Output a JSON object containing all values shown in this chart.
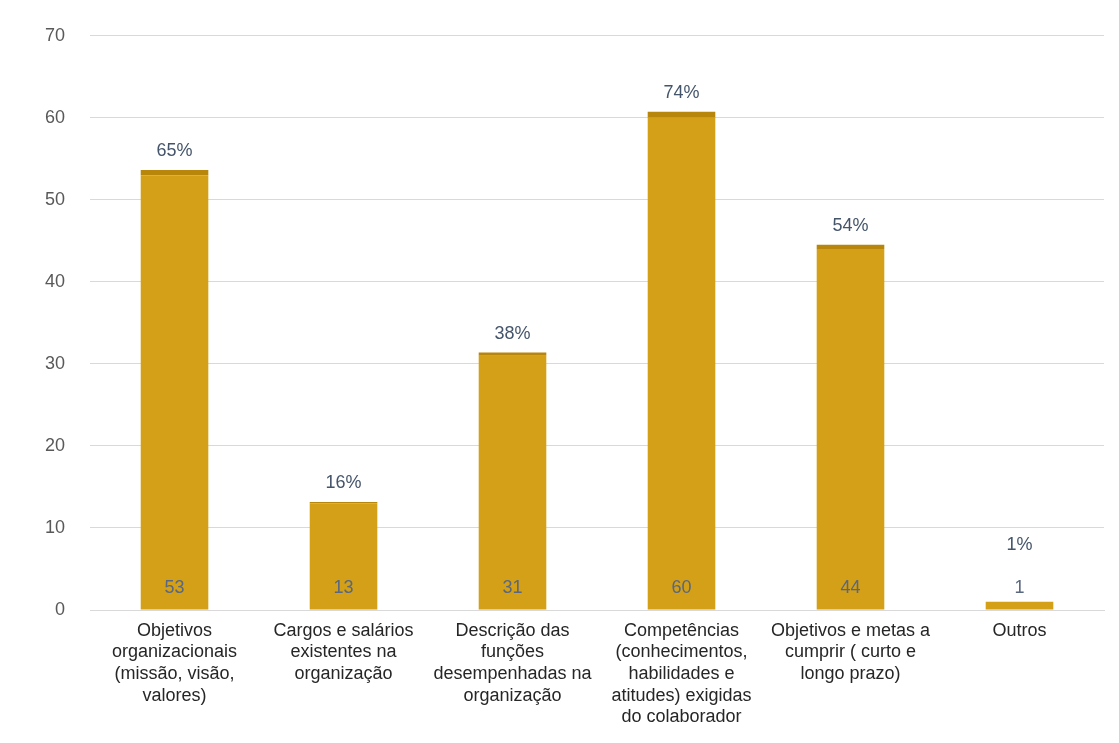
{
  "chart_data": {
    "type": "bar",
    "stacked": true,
    "categories": [
      "Objetivos organizacionais (missão, visão, valores)",
      "Cargos e salários existentes na organização",
      "Descrição das funções desempenhadas na organização",
      "Competências (conhecimentos, habilidades e atitudes) exigidas do colaborador",
      "Objetivos e metas a cumprir ( curto e longo prazo)",
      "Outros"
    ],
    "series": [
      {
        "color": "#d4a017",
        "values": [
          53,
          13,
          31,
          60,
          44,
          1
        ],
        "value_labels": [
          "53",
          "13",
          "31",
          "60",
          "44",
          "1"
        ]
      },
      {
        "color": "#b8860b",
        "values": [
          0.65,
          0.16,
          0.38,
          0.74,
          0.54,
          0.01
        ],
        "value_labels": [
          "65%",
          "16%",
          "38%",
          "74%",
          "54%",
          "1%"
        ]
      }
    ],
    "ylim": [
      0,
      70
    ],
    "yticks": [
      0,
      10,
      20,
      30,
      40,
      50,
      60,
      70
    ],
    "grid": "y",
    "legend": false
  }
}
